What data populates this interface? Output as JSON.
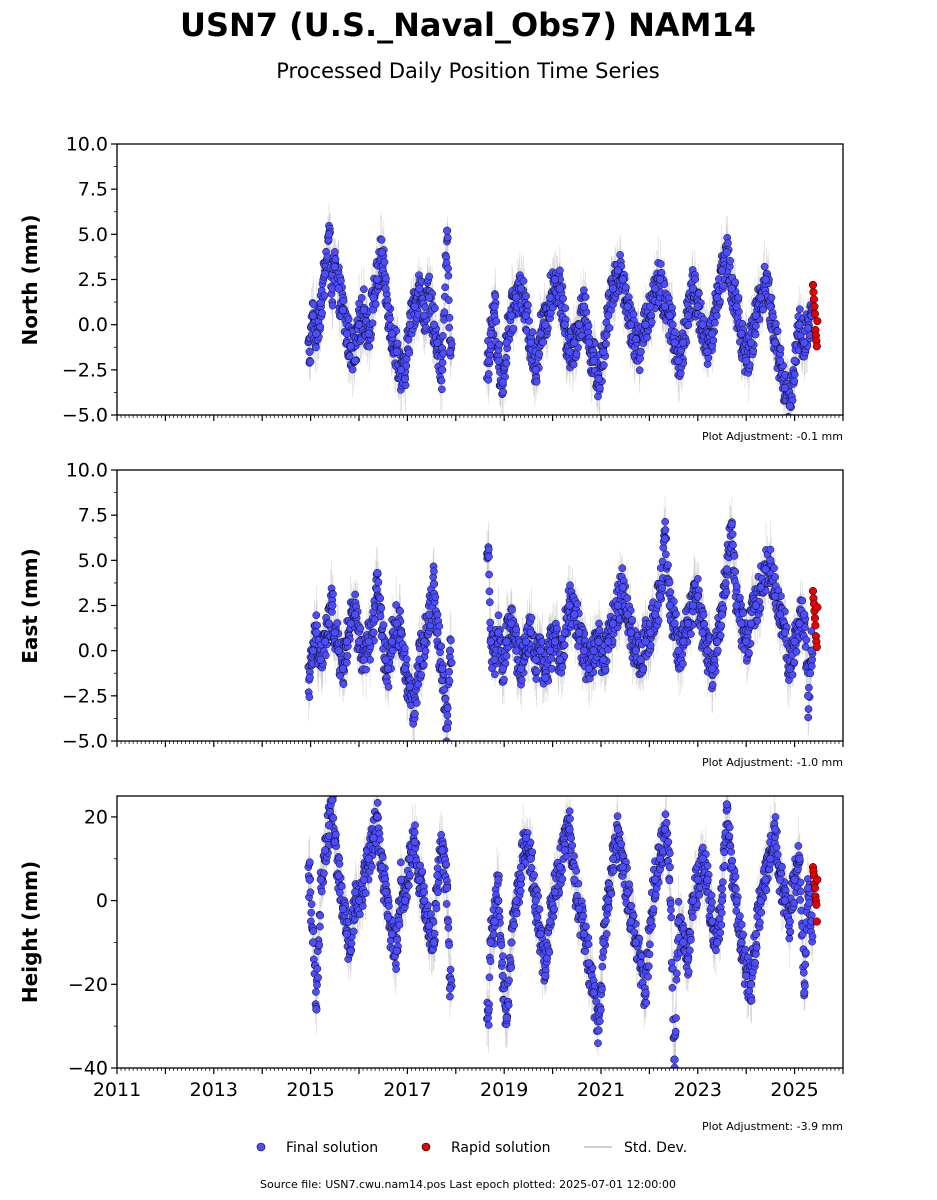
{
  "title": "USN7 (U.S._Naval_Obs7) NAM14",
  "subtitle": "Processed Daily Position Time Series",
  "source_note": "Source file: USN7.cwu.nam14.pos  Last epoch plotted: 2025-07-01 12:00:00",
  "legend": {
    "final": "Final solution",
    "rapid": "Rapid solution",
    "std": "Std. Dev."
  },
  "colors": {
    "final": "#4d4dff",
    "rapid": "#e60000",
    "std": "#bdbdbd",
    "marker_edge": "#000000"
  },
  "chart_data": [
    {
      "type": "scatter",
      "ylabel": "North (mm)",
      "ylim": [
        -5,
        10
      ],
      "yticks": [
        10.0,
        7.5,
        5.0,
        2.5,
        0.0,
        -2.5,
        -5.0
      ],
      "ytick_labels": [
        "10.0",
        "7.5",
        "5.0",
        "2.5",
        "0.0",
        "−2.5",
        "−5.0"
      ],
      "xlim": [
        2011,
        2026
      ],
      "adjustment": "Plot Adjustment: -0.1 mm",
      "series": [
        {
          "name": "Final solution",
          "x": [
            2014.98,
            2015.05,
            2015.12,
            2015.21,
            2015.3,
            2015.38,
            2015.45,
            2015.5,
            2015.58,
            2015.67,
            2015.75,
            2015.83,
            2015.92,
            2016.0,
            2016.1,
            2016.2,
            2016.3,
            2016.38,
            2016.47,
            2016.55,
            2016.6,
            2016.68,
            2016.78,
            2016.87,
            2016.95,
            2017.05,
            2017.15,
            2017.25,
            2017.35,
            2017.45,
            2017.55,
            2017.62,
            2017.72,
            2017.82,
            2017.88,
            2018.68,
            2018.72,
            2018.8,
            2018.88,
            2018.97,
            2019.05,
            2019.15,
            2019.25,
            2019.35,
            2019.45,
            2019.55,
            2019.65,
            2019.75,
            2019.85,
            2019.95,
            2020.05,
            2020.15,
            2020.25,
            2020.35,
            2020.45,
            2020.55,
            2020.65,
            2020.75,
            2020.85,
            2020.95,
            2021.05,
            2021.15,
            2021.25,
            2021.35,
            2021.45,
            2021.55,
            2021.62,
            2021.72,
            2021.82,
            2021.92,
            2022.02,
            2022.12,
            2022.22,
            2022.32,
            2022.42,
            2022.52,
            2022.6,
            2022.7,
            2022.8,
            2022.9,
            2023.0,
            2023.1,
            2023.2,
            2023.3,
            2023.4,
            2023.5,
            2023.6,
            2023.7,
            2023.8,
            2023.9,
            2024.0,
            2024.1,
            2024.2,
            2024.3,
            2024.4,
            2024.5,
            2024.6,
            2024.7,
            2024.8,
            2024.9,
            2025.0,
            2025.1,
            2025.2,
            2025.28,
            2025.35
          ],
          "y": [
            -1.5,
            0.5,
            -0.5,
            1.2,
            2.8,
            5.0,
            2.0,
            3.2,
            2.0,
            0.8,
            -0.5,
            -1.2,
            -2.0,
            0.0,
            0.8,
            -0.5,
            1.5,
            2.5,
            4.0,
            2.0,
            1.0,
            -0.5,
            -1.5,
            -2.5,
            -3.0,
            0.0,
            1.0,
            2.0,
            0.5,
            1.5,
            0.0,
            -1.0,
            -2.5,
            5.2,
            -1.5,
            -2.0,
            -0.5,
            1.0,
            -2.0,
            -3.2,
            -1.0,
            0.5,
            1.5,
            2.0,
            0.5,
            -1.0,
            -2.5,
            -0.5,
            0.0,
            1.5,
            2.5,
            2.0,
            0.0,
            -1.5,
            -1.0,
            0.0,
            1.0,
            -1.0,
            -2.0,
            -3.0,
            -1.5,
            0.5,
            2.0,
            3.0,
            2.5,
            1.0,
            0.0,
            -0.8,
            -1.5,
            0.0,
            1.0,
            2.0,
            2.5,
            1.0,
            0.5,
            -1.0,
            -2.0,
            -1.0,
            0.5,
            2.0,
            1.0,
            0.0,
            -1.5,
            -0.5,
            1.5,
            3.0,
            4.0,
            2.0,
            1.0,
            -0.5,
            -2.0,
            -1.0,
            0.5,
            1.5,
            2.5,
            1.0,
            -1.0,
            -2.0,
            -3.5,
            -4.5,
            -2.0,
            0.0,
            -1.0,
            -0.2,
            0.5
          ]
        },
        {
          "name": "Rapid solution",
          "x": [
            2025.38,
            2025.39,
            2025.4,
            2025.41,
            2025.42,
            2025.43,
            2025.44,
            2025.45,
            2025.46,
            2025.47
          ],
          "y": [
            2.2,
            1.8,
            1.4,
            1.0,
            0.6,
            -0.3,
            -0.6,
            -0.9,
            -1.2,
            0.2
          ]
        }
      ]
    },
    {
      "type": "scatter",
      "ylabel": "East (mm)",
      "ylim": [
        -5,
        10
      ],
      "yticks": [
        10.0,
        7.5,
        5.0,
        2.5,
        0.0,
        -2.5,
        -5.0
      ],
      "ytick_labels": [
        "10.0",
        "7.5",
        "5.0",
        "2.5",
        "0.0",
        "−2.5",
        "−5.0"
      ],
      "xlim": [
        2011,
        2026
      ],
      "adjustment": "Plot Adjustment: -1.0 mm",
      "series": [
        {
          "name": "Final solution",
          "x": [
            2014.98,
            2015.05,
            2015.12,
            2015.21,
            2015.3,
            2015.38,
            2015.45,
            2015.5,
            2015.58,
            2015.67,
            2015.75,
            2015.83,
            2015.92,
            2016.0,
            2016.1,
            2016.2,
            2016.3,
            2016.38,
            2016.47,
            2016.55,
            2016.6,
            2016.68,
            2016.78,
            2016.87,
            2016.95,
            2017.05,
            2017.15,
            2017.25,
            2017.35,
            2017.45,
            2017.55,
            2017.62,
            2017.72,
            2017.82,
            2017.88,
            2018.68,
            2018.72,
            2018.8,
            2018.88,
            2018.97,
            2019.05,
            2019.15,
            2019.25,
            2019.35,
            2019.45,
            2019.55,
            2019.65,
            2019.75,
            2019.85,
            2019.95,
            2020.05,
            2020.15,
            2020.25,
            2020.35,
            2020.45,
            2020.55,
            2020.65,
            2020.75,
            2020.85,
            2020.95,
            2021.05,
            2021.15,
            2021.25,
            2021.35,
            2021.45,
            2021.55,
            2021.62,
            2021.72,
            2021.82,
            2021.92,
            2022.02,
            2022.12,
            2022.22,
            2022.32,
            2022.42,
            2022.52,
            2022.6,
            2022.7,
            2022.8,
            2022.9,
            2023.0,
            2023.1,
            2023.2,
            2023.3,
            2023.4,
            2023.5,
            2023.6,
            2023.7,
            2023.8,
            2023.9,
            2024.0,
            2024.1,
            2024.2,
            2024.3,
            2024.4,
            2024.5,
            2024.6,
            2024.7,
            2024.8,
            2024.9,
            2025.0,
            2025.1,
            2025.2,
            2025.28,
            2025.35
          ],
          "y": [
            -1.5,
            0.0,
            1.0,
            -0.5,
            0.5,
            1.5,
            2.5,
            1.0,
            0.0,
            -1.0,
            0.5,
            1.5,
            2.0,
            0.5,
            -0.5,
            0.5,
            1.0,
            4.3,
            0.8,
            -0.5,
            -1.0,
            0.5,
            1.5,
            1.0,
            -1.0,
            -2.0,
            -3.5,
            -0.5,
            0.5,
            2.0,
            3.7,
            1.0,
            -1.0,
            -4.3,
            0.0,
            5.2,
            0.5,
            -0.5,
            1.0,
            -1.0,
            0.5,
            1.5,
            0.0,
            -1.0,
            0.5,
            1.0,
            -0.5,
            0.0,
            -1.5,
            0.0,
            0.5,
            -0.5,
            1.0,
            2.5,
            2.0,
            1.0,
            0.0,
            -1.0,
            0.0,
            0.5,
            -0.5,
            0.5,
            1.5,
            2.5,
            3.5,
            2.0,
            1.0,
            0.0,
            -0.5,
            0.5,
            1.0,
            2.0,
            3.0,
            6.2,
            2.5,
            1.5,
            0.0,
            0.5,
            1.5,
            2.5,
            3.0,
            1.0,
            0.0,
            -1.0,
            0.5,
            2.0,
            4.5,
            7.0,
            2.5,
            1.5,
            0.5,
            1.5,
            2.5,
            3.5,
            4.5,
            5.0,
            3.0,
            2.0,
            1.0,
            -1.0,
            0.5,
            1.5,
            2.0,
            -2.5,
            0.0
          ]
        },
        {
          "name": "Rapid solution",
          "x": [
            2025.38,
            2025.39,
            2025.4,
            2025.41,
            2025.42,
            2025.43,
            2025.44,
            2025.45,
            2025.46,
            2025.47
          ],
          "y": [
            3.3,
            2.9,
            2.6,
            2.2,
            1.8,
            1.4,
            0.8,
            0.5,
            0.2,
            2.4
          ]
        }
      ]
    },
    {
      "type": "scatter",
      "ylabel": "Height (mm)",
      "ylim": [
        -40,
        25
      ],
      "yticks": [
        20,
        0,
        -20,
        -40
      ],
      "ytick_labels": [
        "20",
        "0",
        "−20",
        "−40"
      ],
      "xlim": [
        2011,
        2026
      ],
      "xticks": [
        2011,
        2013,
        2015,
        2017,
        2019,
        2021,
        2023,
        2025
      ],
      "xtick_labels": [
        "2011",
        "2013",
        "2015",
        "2017",
        "2019",
        "2021",
        "2023",
        "2025"
      ],
      "adjustment": "Plot Adjustment: -3.9 mm",
      "series": [
        {
          "name": "Final solution",
          "x": [
            2014.98,
            2015.05,
            2015.12,
            2015.21,
            2015.3,
            2015.38,
            2015.45,
            2015.5,
            2015.58,
            2015.67,
            2015.75,
            2015.83,
            2015.92,
            2016.0,
            2016.1,
            2016.2,
            2016.3,
            2016.38,
            2016.47,
            2016.55,
            2016.6,
            2016.68,
            2016.78,
            2016.87,
            2016.95,
            2017.05,
            2017.15,
            2017.25,
            2017.35,
            2017.45,
            2017.55,
            2017.62,
            2017.72,
            2017.82,
            2017.88,
            2018.68,
            2018.72,
            2018.8,
            2018.88,
            2018.97,
            2019.05,
            2019.15,
            2019.25,
            2019.35,
            2019.45,
            2019.55,
            2019.65,
            2019.75,
            2019.85,
            2019.95,
            2020.05,
            2020.15,
            2020.25,
            2020.35,
            2020.45,
            2020.55,
            2020.65,
            2020.75,
            2020.85,
            2020.95,
            2021.05,
            2021.15,
            2021.25,
            2021.35,
            2021.45,
            2021.55,
            2021.62,
            2021.72,
            2021.82,
            2021.92,
            2022.02,
            2022.12,
            2022.22,
            2022.32,
            2022.42,
            2022.52,
            2022.6,
            2022.7,
            2022.8,
            2022.9,
            2023.0,
            2023.1,
            2023.2,
            2023.3,
            2023.4,
            2023.5,
            2023.6,
            2023.7,
            2023.8,
            2023.9,
            2024.0,
            2024.1,
            2024.2,
            2024.3,
            2024.4,
            2024.5,
            2024.6,
            2024.7,
            2024.8,
            2024.9,
            2025.0,
            2025.1,
            2025.2,
            2025.28,
            2025.35
          ],
          "y": [
            5,
            -10,
            -26,
            5,
            12,
            18,
            24,
            14,
            6,
            -2,
            -8,
            -12,
            2,
            0,
            5,
            10,
            15,
            20,
            8,
            2,
            -4,
            -8,
            -12,
            5,
            0,
            10,
            14,
            5,
            0,
            -6,
            -10,
            6,
            12,
            3,
            -21,
            -26,
            -10,
            -5,
            5,
            -18,
            -28,
            -10,
            0,
            8,
            15,
            10,
            0,
            -8,
            -18,
            -5,
            2,
            8,
            12,
            17,
            5,
            -2,
            -8,
            -15,
            -22,
            -31,
            -10,
            0,
            10,
            17,
            8,
            2,
            -5,
            -10,
            -15,
            -22,
            -5,
            5,
            10,
            17,
            8,
            -38,
            -5,
            -10,
            -14,
            0,
            5,
            10,
            5,
            -5,
            -10,
            0,
            23,
            8,
            0,
            -10,
            -18,
            -20,
            -8,
            0,
            5,
            10,
            17,
            5,
            0,
            -5,
            5,
            10,
            -22,
            3,
            -5
          ]
        },
        {
          "name": "Rapid solution",
          "x": [
            2025.38,
            2025.39,
            2025.4,
            2025.41,
            2025.42,
            2025.43,
            2025.44,
            2025.45,
            2025.46,
            2025.47
          ],
          "y": [
            8,
            7,
            6,
            4,
            3,
            1,
            0,
            -1,
            -5,
            5
          ]
        }
      ]
    }
  ]
}
